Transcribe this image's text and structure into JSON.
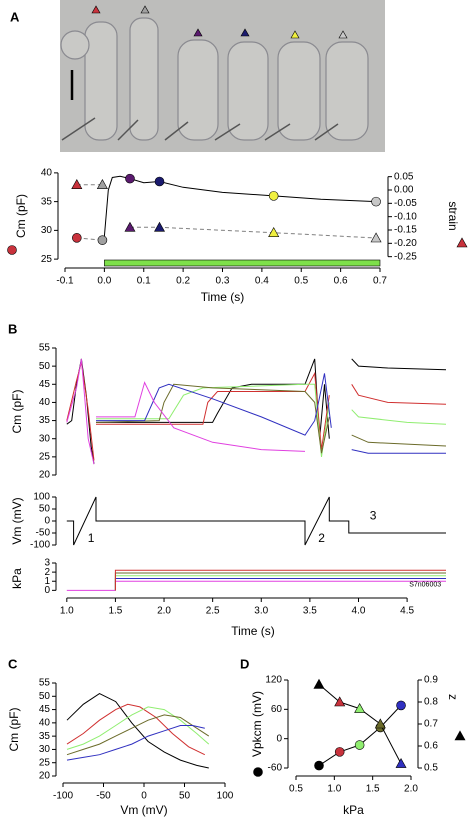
{
  "chart_data": [
    {
      "type": "scatter",
      "panel": "A",
      "xlabel": "Time (s)",
      "ylabel": "Cm (pF)",
      "y2label": "strain",
      "xlim": [
        -0.1,
        0.7
      ],
      "xticks": [
        -0.1,
        {
          "value": 0,
          "label": "0.0"
        },
        0.1,
        0.2,
        0.3,
        0.4,
        0.5,
        0.6,
        0.7
      ],
      "ylim": [
        24.5,
        40.5
      ],
      "yticks": [
        25,
        30,
        35,
        40
      ],
      "y2lim": [
        -0.27,
        0.075
      ],
      "y2ticks": [
        0.05,
        {
          "value": 0,
          "label": "0.00"
        },
        -0.05,
        {
          "value": -0.1,
          "label": "-0.10"
        },
        -0.15,
        {
          "value": -0.2,
          "label": "-0.20"
        },
        -0.25
      ],
      "series": [
        {
          "line": "dashed",
          "color": "#808080",
          "x": [
            -0.07,
            -0.005
          ],
          "values": [
            28.7,
            28.3
          ]
        },
        {
          "line": "solid",
          "color": "#000000",
          "x": [
            -0.005,
            0,
            0.01,
            0.02,
            0.04,
            0.065,
            0.1,
            0.14,
            0.2,
            0.3,
            0.43,
            0.55,
            0.69
          ],
          "values": [
            28.3,
            29,
            37,
            39.2,
            39.4,
            39,
            38.3,
            38.5,
            37.5,
            36.6,
            36,
            35.4,
            35
          ]
        },
        {
          "line": "none",
          "marker": "circle",
          "x": [
            -0.07,
            -0.005,
            0.065,
            0.14,
            0.43,
            0.69
          ],
          "values": [
            28.7,
            28.3,
            39,
            38.5,
            36,
            35
          ],
          "colors": [
            "#c8323c",
            "#a0a0a0",
            "#5a1a6e",
            "#1a1a6e",
            "#f0f040",
            "#c8c8c8"
          ]
        },
        {
          "axis": "y2",
          "line": "dashed",
          "color": "#808080",
          "marker": "triangle",
          "x": [
            -0.07,
            -0.005
          ],
          "values": [
            0.02,
            0.02
          ],
          "colors": [
            "#c8323c",
            "#a0a0a0"
          ]
        },
        {
          "axis": "y2",
          "line": "dashed",
          "color": "#808080",
          "marker": "triangle",
          "x": [
            0.065,
            0.14,
            0.43,
            0.69
          ],
          "values": [
            -0.14,
            -0.14,
            -0.16,
            -0.18
          ],
          "colors": [
            "#5a1a6e",
            "#1a1a6e",
            "#f0f040",
            "#c8c8c8"
          ]
        }
      ],
      "stimulus": {
        "x": [
          0,
          0.7
        ],
        "color": "#7ee04a"
      }
    },
    {
      "type": "line",
      "panel": "B",
      "ylabel": "Cm (pF)",
      "xlim": [
        0.93,
        4.9
      ],
      "ylim": [
        20,
        55
      ],
      "yticks": [
        20,
        25,
        30,
        35,
        40,
        45,
        50,
        55
      ],
      "series": [
        {
          "line": "solid",
          "color": "#000000",
          "x": [
            1.0,
            1.05,
            1.1,
            1.15,
            1.2,
            1.25,
            1.28,
            1.29,
            1.3,
            2.5,
            2.55,
            2.7,
            2.9,
            3.45,
            3.55,
            3.6,
            3.65,
            3.7,
            3.8,
            3.93,
            4.0,
            4.3,
            4.9
          ],
          "values": [
            34,
            35,
            45,
            52,
            42,
            28,
            23,
            null,
            34.5,
            34.5,
            37,
            44,
            45,
            45,
            52,
            30,
            45,
            30,
            null,
            52,
            50,
            49.5,
            49
          ]
        },
        {
          "line": "solid",
          "color": "#d03030",
          "x": [
            1.0,
            1.1,
            1.15,
            1.22,
            1.28,
            1.29,
            1.3,
            2.4,
            2.45,
            2.55,
            3.45,
            3.55,
            3.62,
            3.7,
            3.8,
            3.93,
            4.0,
            4.3,
            4.9
          ],
          "values": [
            35,
            46,
            51,
            38,
            24,
            null,
            34,
            34,
            40,
            43,
            43,
            48,
            27,
            42,
            null,
            45,
            42,
            40,
            39.5
          ]
        },
        {
          "line": "solid",
          "color": "#90ee70",
          "x": [
            1.3,
            2.05,
            2.2,
            2.4,
            3.45,
            3.55,
            3.62,
            3.7,
            3.8,
            3.93,
            4.0,
            4.5,
            4.9
          ],
          "values": [
            35.5,
            35.5,
            42,
            44,
            45,
            45,
            25,
            40,
            null,
            38,
            36,
            34.5,
            34
          ]
        },
        {
          "line": "solid",
          "color": "#6b6b2a",
          "x": [
            1.3,
            1.95,
            2.0,
            2.1,
            2.5,
            3.45,
            3.55,
            3.62,
            3.7,
            3.8,
            3.93,
            4.1,
            4.9
          ],
          "values": [
            34.5,
            35,
            40,
            45,
            44,
            43,
            40,
            26,
            36,
            null,
            31,
            29,
            28
          ]
        },
        {
          "line": "solid",
          "color": "#3030c0",
          "x": [
            1.3,
            1.8,
            1.95,
            2.05,
            2.5,
            3.0,
            3.45,
            3.55,
            3.65,
            3.72,
            3.8,
            3.93,
            4.1,
            4.9
          ],
          "values": [
            35,
            35,
            44,
            45,
            41,
            36,
            31,
            35,
            48,
            33,
            null,
            27,
            26,
            26
          ]
        },
        {
          "line": "solid",
          "color": "#e040e0",
          "x": [
            1.0,
            1.1,
            1.15,
            1.22,
            1.28,
            1.29,
            1.3,
            1.7,
            1.8,
            1.9,
            2.1,
            2.5,
            3.0,
            3.45
          ],
          "values": [
            34.5,
            44,
            52,
            30,
            23,
            null,
            36,
            36,
            45.5,
            40,
            33,
            29,
            27,
            26.5
          ]
        }
      ]
    },
    {
      "type": "line",
      "ylabel": "Vm (mV)",
      "xlim": [
        0.93,
        4.9
      ],
      "ylim": [
        -100,
        100
      ],
      "yticks": [
        -100,
        -50,
        0,
        50,
        100
      ],
      "series": [
        {
          "line": "solid",
          "color": "#000000",
          "x": [
            1.0,
            1.07,
            1.07,
            1.3,
            1.3,
            3.45,
            3.45,
            3.7,
            3.7,
            3.9,
            3.9,
            4.9
          ],
          "values": [
            0,
            0,
            -100,
            100,
            0,
            0,
            -100,
            100,
            0,
            0,
            -50,
            -50
          ]
        }
      ],
      "annotations": [
        "1",
        "2",
        "3"
      ]
    },
    {
      "type": "line",
      "ylabel": "kPa",
      "xlabel": "Time (s)",
      "xlim": [
        0.93,
        4.9
      ],
      "ylim": [
        -0.4,
        3
      ],
      "xticks": [
        {
          "value": 1,
          "label": "1.0"
        },
        1.5,
        {
          "value": 2,
          "label": "2.0"
        },
        2.5,
        {
          "value": 3,
          "label": "3.0"
        },
        3.5,
        {
          "value": 4,
          "label": "4.0"
        },
        4.5
      ],
      "yticks": [
        0,
        1,
        2,
        3
      ],
      "series": [
        {
          "line": "solid",
          "color": "#e040e0",
          "x": [
            1.0,
            1.5,
            1.5,
            4.9
          ],
          "values": [
            0,
            0,
            1.0,
            1.0
          ]
        },
        {
          "line": "solid",
          "color": "#3030c0",
          "x": [
            1.5,
            1.5,
            4.9
          ],
          "values": [
            0,
            1.3,
            1.3
          ]
        },
        {
          "line": "solid",
          "color": "#90ee70",
          "x": [
            1.5,
            1.5,
            4.9
          ],
          "values": [
            0,
            1.6,
            1.6
          ]
        },
        {
          "line": "solid",
          "color": "#6b6b2a",
          "x": [
            1.5,
            1.5,
            4.9
          ],
          "values": [
            0,
            1.9,
            1.9
          ]
        },
        {
          "line": "solid",
          "color": "#d03030",
          "x": [
            1.5,
            1.5,
            4.9
          ],
          "values": [
            0,
            2.2,
            2.2
          ]
        }
      ],
      "annotations": [
        "S7n06003"
      ]
    },
    {
      "type": "line",
      "panel": "C",
      "xlabel": "Vm (mV)",
      "ylabel": "Cm (pF)",
      "xlim": [
        -100,
        100
      ],
      "xticks": [
        -100,
        -50,
        0,
        50,
        100
      ],
      "ylim": [
        20,
        55
      ],
      "yticks": [
        20,
        25,
        30,
        35,
        40,
        45,
        50,
        55
      ],
      "series": [
        {
          "line": "solid",
          "color": "#000000",
          "x": [
            -95,
            -75,
            -55,
            -35,
            -15,
            5,
            25,
            45,
            65,
            80
          ],
          "values": [
            41,
            47,
            51,
            48,
            40,
            33,
            29,
            26,
            24,
            23
          ]
        },
        {
          "line": "solid",
          "color": "#d03030",
          "x": [
            -95,
            -75,
            -55,
            -35,
            -20,
            -5,
            15,
            35,
            55,
            75
          ],
          "values": [
            32,
            36,
            41,
            45,
            47,
            46,
            42,
            36,
            31,
            28
          ]
        },
        {
          "line": "solid",
          "color": "#90ee70",
          "x": [
            -95,
            -75,
            -55,
            -35,
            -15,
            5,
            25,
            45,
            65,
            80
          ],
          "values": [
            30,
            32,
            35,
            39,
            43,
            46,
            45,
            41,
            36,
            32
          ]
        },
        {
          "line": "solid",
          "color": "#6b6b2a",
          "x": [
            -95,
            -75,
            -55,
            -35,
            -15,
            5,
            25,
            45,
            65,
            80
          ],
          "values": [
            28,
            30,
            32,
            35,
            38,
            41,
            43,
            42,
            38,
            35
          ]
        },
        {
          "line": "solid",
          "color": "#3030c0",
          "x": [
            -95,
            -75,
            -55,
            -35,
            -15,
            5,
            25,
            45,
            60,
            75
          ],
          "values": [
            26,
            27,
            28,
            30,
            32,
            35,
            37,
            39,
            39,
            38
          ]
        }
      ]
    },
    {
      "type": "scatter",
      "panel": "D",
      "xlabel": "kPa",
      "ylabel": "Vpkcm (mV)",
      "y2label": "z",
      "xlim": [
        0.5,
        2.0
      ],
      "xticks": [
        0.5,
        {
          "value": 1,
          "label": "1.0"
        },
        1.5,
        {
          "value": 2,
          "label": "2.0"
        }
      ],
      "ylim": [
        -60,
        120
      ],
      "yticks": [
        -60,
        0,
        60,
        120
      ],
      "y2lim": [
        0.5,
        0.9
      ],
      "y2ticks": [
        0.5,
        0.6,
        0.7,
        0.8,
        0.9
      ],
      "series": [
        {
          "line": "solid",
          "color": "#000000",
          "marker": "circle",
          "x": [
            0.8,
            1.07,
            1.33,
            1.6,
            1.87
          ],
          "values": [
            -55,
            -27,
            -13,
            23,
            68
          ],
          "colors": [
            "#000000",
            "#c8323c",
            "#90ee70",
            "#6b6b2a",
            "#3030c0"
          ]
        },
        {
          "axis": "y2",
          "line": "solid",
          "color": "#000000",
          "marker": "triangle",
          "x": [
            0.8,
            1.07,
            1.33,
            1.6,
            1.87
          ],
          "values": [
            0.88,
            0.8,
            0.77,
            0.7,
            0.52
          ],
          "colors": [
            "#000000",
            "#c8323c",
            "#90ee70",
            "#6b6b2a",
            "#3030c0"
          ]
        }
      ]
    }
  ]
}
